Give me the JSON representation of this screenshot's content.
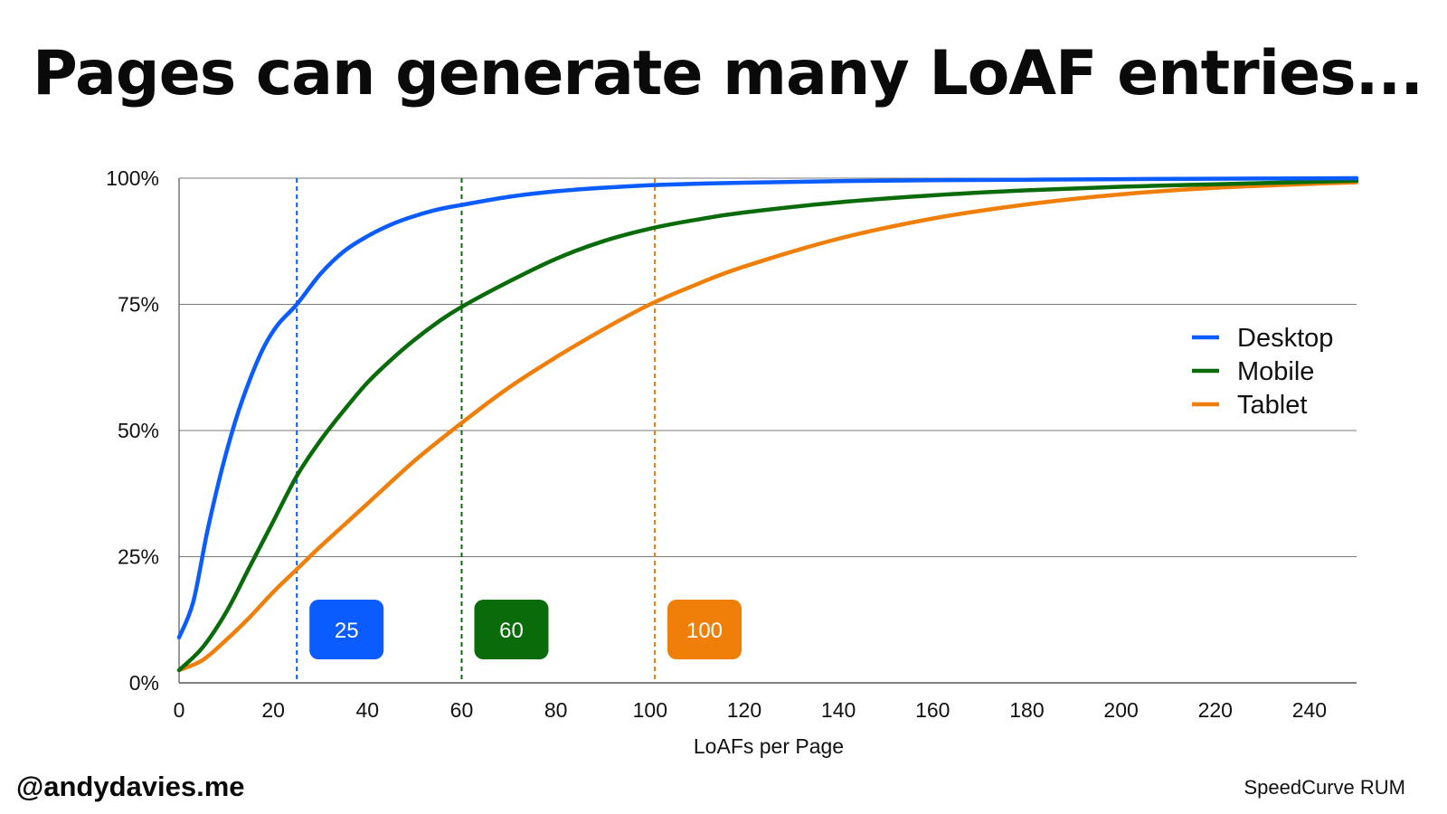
{
  "slide": {
    "title": "Pages can generate many LoAF entries...",
    "author": "@andydavies.me",
    "source": "SpeedCurve RUM"
  },
  "chart_data": {
    "type": "line",
    "title": "",
    "xlabel": "LoAFs per Page",
    "ylabel": "",
    "xlim": [
      0,
      250
    ],
    "ylim": [
      0,
      100
    ],
    "xticks": [
      0,
      20,
      40,
      60,
      80,
      100,
      120,
      140,
      160,
      180,
      200,
      220,
      240
    ],
    "yticks": [
      0,
      25,
      50,
      75,
      100
    ],
    "ytick_labels": [
      "0%",
      "25%",
      "50%",
      "75%",
      "100%"
    ],
    "grid": "horizontal",
    "legend_position": "right",
    "series": [
      {
        "name": "Desktop",
        "color": "#0b5cff",
        "x": [
          0,
          3,
          6,
          9,
          12,
          15,
          18,
          21,
          25,
          30,
          35,
          40,
          45,
          50,
          55,
          60,
          70,
          80,
          90,
          100,
          110,
          120,
          140,
          160,
          180,
          200,
          220,
          250
        ],
        "y": [
          9,
          16,
          30,
          42,
          52,
          60,
          66.5,
          71,
          75,
          81,
          85.5,
          88.5,
          90.8,
          92.5,
          93.8,
          94.7,
          96.3,
          97.4,
          98.1,
          98.6,
          98.9,
          99.1,
          99.4,
          99.6,
          99.7,
          99.8,
          99.9,
          100
        ]
      },
      {
        "name": "Mobile",
        "color": "#0a6b0a",
        "x": [
          0,
          5,
          10,
          15,
          20,
          25,
          30,
          35,
          40,
          45,
          50,
          55,
          60,
          70,
          80,
          90,
          100,
          110,
          120,
          140,
          160,
          180,
          200,
          220,
          250
        ],
        "y": [
          2.5,
          7,
          14,
          23,
          32,
          41,
          48,
          54,
          59.5,
          64,
          68,
          71.5,
          74.5,
          79.5,
          84,
          87.5,
          90,
          91.8,
          93.2,
          95.2,
          96.6,
          97.6,
          98.3,
          98.8,
          99.5
        ]
      },
      {
        "name": "Tablet",
        "color": "#f07f09",
        "x": [
          0,
          5,
          10,
          15,
          20,
          25,
          30,
          40,
          50,
          60,
          70,
          80,
          90,
          100,
          110,
          120,
          140,
          160,
          180,
          200,
          220,
          250
        ],
        "y": [
          2.5,
          4.5,
          8.5,
          13,
          18,
          22.5,
          27,
          35.5,
          44,
          51.5,
          58.5,
          64.5,
          70,
          75,
          79,
          82.5,
          88,
          92,
          94.8,
          96.8,
          98.1,
          99.2
        ]
      }
    ],
    "reference_lines": [
      {
        "series": "Desktop",
        "x": 25,
        "label": "25",
        "color": "#0b5cff"
      },
      {
        "series": "Mobile",
        "x": 60,
        "label": "60",
        "color": "#0a6b0a"
      },
      {
        "series": "Tablet",
        "x": 101,
        "label": "100",
        "color": "#f07f09"
      }
    ]
  }
}
